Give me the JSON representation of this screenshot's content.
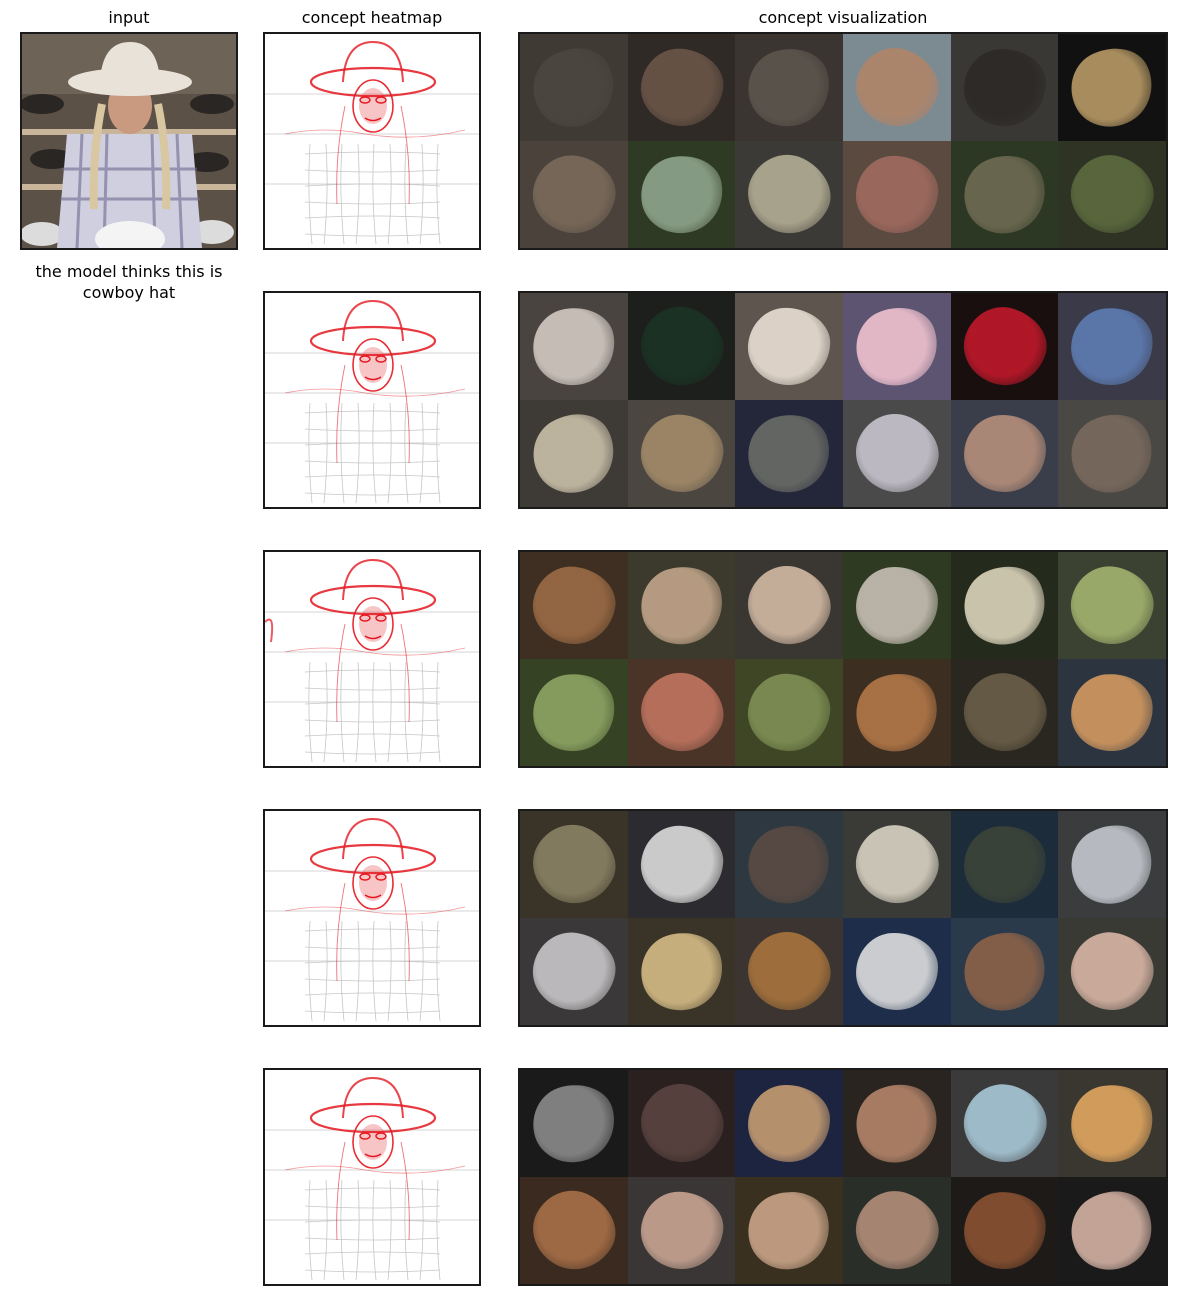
{
  "titles": {
    "input": "input",
    "heatmap": "concept heatmap",
    "visualization": "concept visualization"
  },
  "caption": "the model thinks this is cowboy hat",
  "input_image": {
    "depicts": "woman-in-cowboy-hat-with-braids-and-plaid-shirt",
    "colors": {
      "bg": "#5b5147",
      "hat": "#e9e2d8",
      "skin": "#c99a80",
      "shirt": "#cfcfe0"
    }
  },
  "heatmap_color": "#e5161f",
  "concept_rows": [
    {
      "tiles": [
        {
          "bg": "#3f3a33",
          "fg": "#4c4640"
        },
        {
          "bg": "#2f2a26",
          "fg": "#6b5548"
        },
        {
          "bg": "#3a3530",
          "fg": "#5c554e"
        },
        {
          "bg": "#7c8a92",
          "fg": "#b08468"
        },
        {
          "bg": "#3a3834",
          "fg": "#2c2926"
        },
        {
          "bg": "#111111",
          "fg": "#b89a66"
        },
        {
          "bg": "#4a423b",
          "fg": "#7a6a5a"
        },
        {
          "bg": "#2e3a24",
          "fg": "#8fa48c"
        },
        {
          "bg": "#3c3a36",
          "fg": "#b3ad94"
        },
        {
          "bg": "#5b4a40",
          "fg": "#a06a5f"
        },
        {
          "bg": "#2d3824",
          "fg": "#6e6a52"
        },
        {
          "bg": "#2e3324",
          "fg": "#5d6b3f"
        }
      ]
    },
    {
      "tiles": [
        {
          "bg": "#4a4440",
          "fg": "#d2c9c2"
        },
        {
          "bg": "#1d1f1c",
          "fg": "#1a3324"
        },
        {
          "bg": "#5d554e",
          "fg": "#e9dfd4"
        },
        {
          "bg": "#5c5470",
          "fg": "#f0c2cf"
        },
        {
          "bg": "#1a0f0f",
          "fg": "#c0182a"
        },
        {
          "bg": "#3a3a48",
          "fg": "#5e7cb3"
        },
        {
          "bg": "#3e3a36",
          "fg": "#c9c0a8"
        },
        {
          "bg": "#4b4640",
          "fg": "#a48b6a"
        },
        {
          "bg": "#24263a",
          "fg": "#6a6c66"
        },
        {
          "bg": "#4a4a4a",
          "fg": "#c9c4cf"
        },
        {
          "bg": "#3a3e4a",
          "fg": "#b58e7a"
        },
        {
          "bg": "#4a4844",
          "fg": "#7a6a5e"
        }
      ]
    },
    {
      "tiles": [
        {
          "bg": "#3e2f22",
          "fg": "#9c6b45"
        },
        {
          "bg": "#3c3a2c",
          "fg": "#c2a58a"
        },
        {
          "bg": "#3a3632",
          "fg": "#d2b9a3"
        },
        {
          "bg": "#2e3a22",
          "fg": "#c8bfb5"
        },
        {
          "bg": "#242a1c",
          "fg": "#dcd4bc"
        },
        {
          "bg": "#3c4232",
          "fg": "#a3b36e"
        },
        {
          "bg": "#354223",
          "fg": "#8ea564"
        },
        {
          "bg": "#4a3428",
          "fg": "#c07560"
        },
        {
          "bg": "#3e4626",
          "fg": "#7e8f54"
        },
        {
          "bg": "#3d2e22",
          "fg": "#b37848"
        },
        {
          "bg": "#2a2620",
          "fg": "#6b5f48"
        },
        {
          "bg": "#2c3440",
          "fg": "#d49a60"
        }
      ]
    },
    {
      "tiles": [
        {
          "bg": "#3a3428",
          "fg": "#8a8264"
        },
        {
          "bg": "#2c2c30",
          "fg": "#dcdcdc"
        },
        {
          "bg": "#2e3840",
          "fg": "#5a4a42"
        },
        {
          "bg": "#3a3a36",
          "fg": "#d8d2c2"
        },
        {
          "bg": "#1c2c3a",
          "fg": "#3c4438"
        },
        {
          "bg": "#3a3c3e",
          "fg": "#c4c8ce"
        },
        {
          "bg": "#3a3838",
          "fg": "#c8c6c8"
        },
        {
          "bg": "#3a3428",
          "fg": "#d6bc86"
        },
        {
          "bg": "#3c3430",
          "fg": "#a8743c"
        },
        {
          "bg": "#1e2e4a",
          "fg": "#dedede"
        },
        {
          "bg": "#2a3a4a",
          "fg": "#8c6248"
        },
        {
          "bg": "#3a3a34",
          "fg": "#d9b6a6"
        }
      ]
    },
    {
      "tiles": [
        {
          "bg": "#1a1a1a",
          "fg": "#8a8a8a"
        },
        {
          "bg": "#2a2020",
          "fg": "#5a4440"
        },
        {
          "bg": "#1c2440",
          "fg": "#c69c72"
        },
        {
          "bg": "#2a2420",
          "fg": "#b4856a"
        },
        {
          "bg": "#3a3a3a",
          "fg": "#a8c8d8"
        },
        {
          "bg": "#3a3630",
          "fg": "#e0a660"
        },
        {
          "bg": "#3a2a20",
          "fg": "#a87048"
        },
        {
          "bg": "#3a3636",
          "fg": "#c8a492"
        },
        {
          "bg": "#3a3020",
          "fg": "#c9a488"
        },
        {
          "bg": "#2a2e28",
          "fg": "#b48e7a"
        },
        {
          "bg": "#1e1a18",
          "fg": "#8a5232"
        },
        {
          "bg": "#1a1a1a",
          "fg": "#d4b2a4"
        }
      ]
    }
  ]
}
